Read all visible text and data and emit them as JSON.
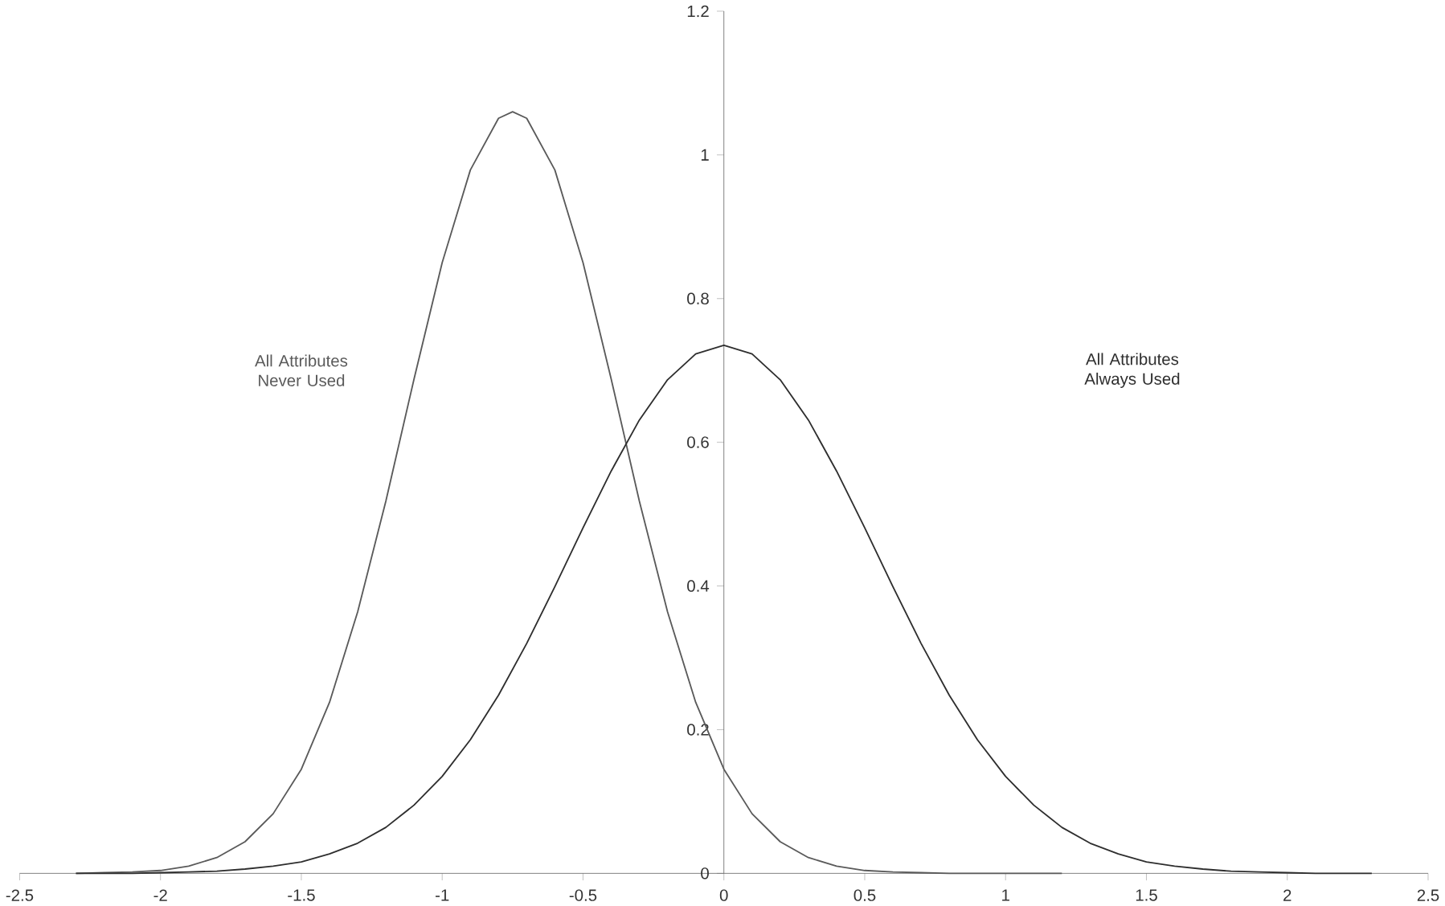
{
  "chart_data": {
    "type": "line",
    "xlim": [
      -2.5,
      2.5
    ],
    "ylim": [
      0,
      1.2
    ],
    "xticks": [
      -2.5,
      -2,
      -1.5,
      -1,
      -0.5,
      0,
      0.5,
      1,
      1.5,
      2,
      2.5
    ],
    "yticks": [
      0,
      0.2,
      0.4,
      0.6,
      0.8,
      1,
      1.2
    ],
    "grid": false,
    "legend": false,
    "marker": "none",
    "line_style": "solid",
    "series": [
      {
        "name": "All Attributes Never Used",
        "color": "#5a5a5a",
        "x": [
          -2.3,
          -2.2,
          -2.1,
          -2.0,
          -1.9,
          -1.8,
          -1.7,
          -1.6,
          -1.5,
          -1.4,
          -1.3,
          -1.2,
          -1.1,
          -1.0,
          -0.9,
          -0.8,
          -0.75,
          -0.7,
          -0.6,
          -0.5,
          -0.4,
          -0.3,
          -0.2,
          -0.1,
          0,
          0.1,
          0.2,
          0.3,
          0.4,
          0.5,
          0.6,
          0.7,
          0.8,
          0.9,
          1.0,
          1.1,
          1.2
        ],
        "values": [
          0,
          0.001,
          0.002,
          0.004,
          0.01,
          0.022,
          0.044,
          0.083,
          0.145,
          0.238,
          0.364,
          0.518,
          0.688,
          0.85,
          0.979,
          1.051,
          1.06,
          1.051,
          0.979,
          0.85,
          0.688,
          0.518,
          0.364,
          0.238,
          0.145,
          0.083,
          0.044,
          0.022,
          0.01,
          0.004,
          0.002,
          0.001,
          0,
          0,
          0,
          0,
          0
        ]
      },
      {
        "name": "All Attributes Always Used",
        "color": "#2e2e2e",
        "x": [
          -2.3,
          -2.2,
          -2.1,
          -2.0,
          -1.9,
          -1.8,
          -1.7,
          -1.6,
          -1.5,
          -1.4,
          -1.3,
          -1.2,
          -1.1,
          -1.0,
          -0.9,
          -0.8,
          -0.7,
          -0.6,
          -0.5,
          -0.4,
          -0.3,
          -0.2,
          -0.1,
          0,
          0.1,
          0.2,
          0.3,
          0.4,
          0.5,
          0.6,
          0.7,
          0.8,
          0.9,
          1.0,
          1.1,
          1.2,
          1.3,
          1.4,
          1.5,
          1.6,
          1.7,
          1.8,
          1.9,
          2.0,
          2.1,
          2.2,
          2.3
        ],
        "values": [
          0,
          0,
          0,
          0.001,
          0.002,
          0.003,
          0.006,
          0.01,
          0.016,
          0.027,
          0.042,
          0.064,
          0.095,
          0.135,
          0.186,
          0.248,
          0.32,
          0.399,
          0.481,
          0.56,
          0.631,
          0.687,
          0.723,
          0.735,
          0.723,
          0.687,
          0.631,
          0.56,
          0.481,
          0.399,
          0.32,
          0.248,
          0.186,
          0.135,
          0.095,
          0.064,
          0.042,
          0.027,
          0.016,
          0.01,
          0.006,
          0.003,
          0.002,
          0.001,
          0,
          0,
          0
        ]
      }
    ]
  }
}
